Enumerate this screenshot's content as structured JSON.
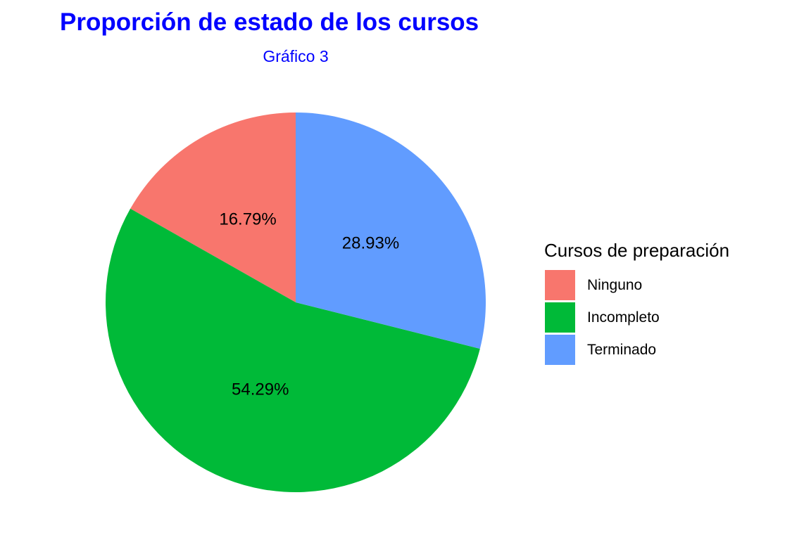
{
  "chart_data": {
    "type": "pie",
    "title": "Proporción de estado de los cursos",
    "subtitle": "Gráfico 3",
    "legend_title": "Cursos de preparación",
    "legend_position": "right",
    "title_color": "#0000FF",
    "slices": [
      {
        "label": "Ninguno",
        "value": 16.79,
        "display": "16.79%",
        "color": "#F8766D"
      },
      {
        "label": "Incompleto",
        "value": 54.29,
        "display": "54.29%",
        "color": "#00BA38"
      },
      {
        "label": "Terminado",
        "value": 28.93,
        "display": "28.93%",
        "color": "#619CFF"
      }
    ]
  }
}
